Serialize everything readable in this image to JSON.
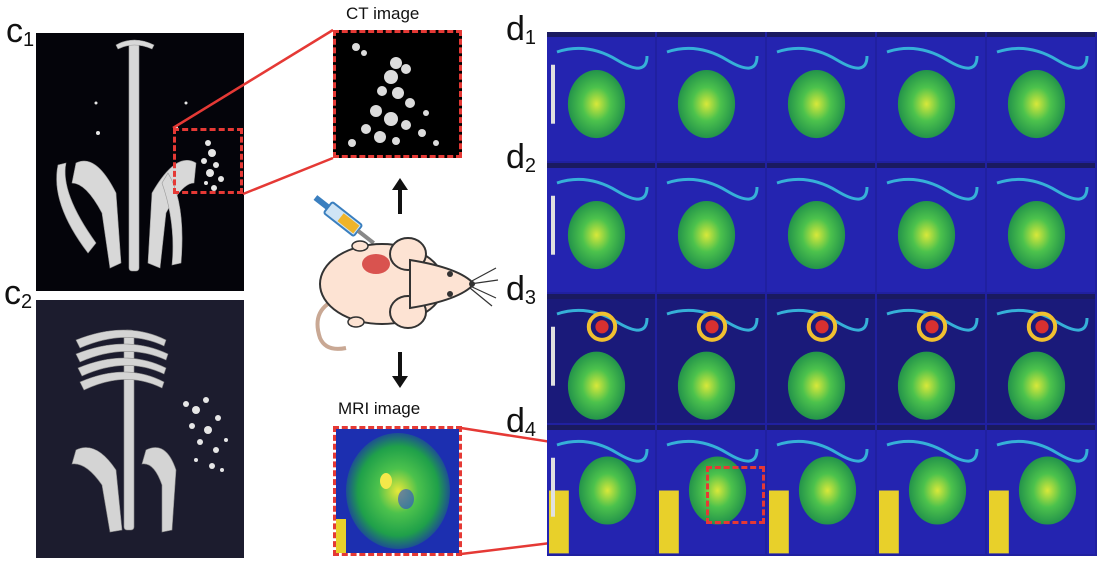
{
  "labels": {
    "c1": {
      "main": "c",
      "sub": "1"
    },
    "c2": {
      "main": "c",
      "sub": "2"
    },
    "d1": {
      "main": "d",
      "sub": "1"
    },
    "d2": {
      "main": "d",
      "sub": "2"
    },
    "d3": {
      "main": "d",
      "sub": "3"
    },
    "d4": {
      "main": "d",
      "sub": "4"
    }
  },
  "captions": {
    "ct": "CT image",
    "mri": "MRI image"
  },
  "colors": {
    "highlight": "#e53935",
    "mouse_body": "#fde3d3",
    "tumor": "#d9534f",
    "syringe": "#3a7fbf"
  },
  "mri_grid": {
    "rows": 4,
    "cols": 5
  }
}
